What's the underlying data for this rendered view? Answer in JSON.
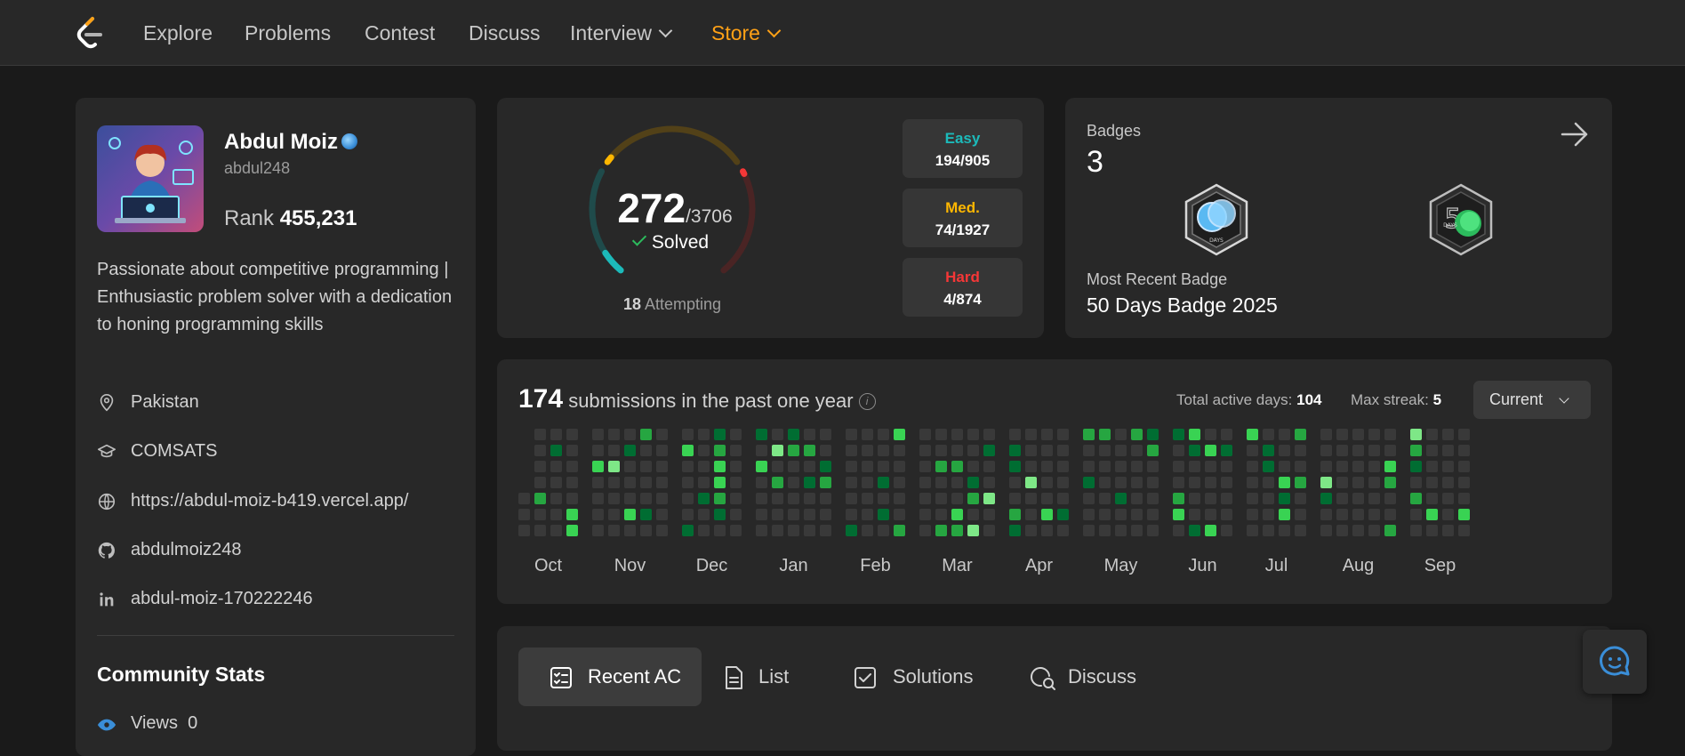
{
  "nav": {
    "items": [
      "Explore",
      "Problems",
      "Contest",
      "Discuss",
      "Interview",
      "Store"
    ],
    "logo_icon": "leetcode-logo"
  },
  "profile": {
    "name": "Abdul Moiz",
    "handle": "abdul248",
    "rank_label": "Rank",
    "rank_value": "455,231",
    "bio": "Passionate about competitive programming | Enthusiastic problem solver with a dedication to honing programming skills",
    "location": "Pakistan",
    "school": "COMSATS",
    "website": "https://abdul-moiz-b419.vercel.app/",
    "github": "abdulmoiz248",
    "linkedin": "abdul-moiz-170222246",
    "community_title": "Community Stats",
    "views_label": "Views",
    "views_value": "0"
  },
  "solved": {
    "count": "272",
    "total": "/3706",
    "label": "Solved",
    "attempting_count": "18",
    "attempting_label": "Attempting",
    "progress_fraction": 0.073,
    "easy": {
      "label": "Easy",
      "value": "194/905",
      "color": "#1cbaba"
    },
    "medium": {
      "label": "Med.",
      "value": "74/1927",
      "color": "#ffb700"
    },
    "hard": {
      "label": "Hard",
      "value": "4/874",
      "color": "#f63737"
    }
  },
  "badges": {
    "title": "Badges",
    "count": "3",
    "recent_label": "Most Recent Badge",
    "recent_name": "50 Days Badge 2025",
    "badge_text": "DAYS"
  },
  "submissions": {
    "count": "174",
    "label": "submissions in the past one year",
    "active_label": "Total active days:",
    "active_value": "104",
    "streak_label": "Max streak:",
    "streak_value": "5",
    "period": "Current",
    "months": [
      "Oct",
      "Nov",
      "Dec",
      "Jan",
      "Feb",
      "Mar",
      "Apr",
      "May",
      "Jun",
      "Jul",
      "Aug",
      "Sep"
    ],
    "colors": {
      "empty": "#393939",
      "l1": "#006d32",
      "l2": "#26a641",
      "l3": "#39d353",
      "l4": "#7ee787"
    }
  },
  "tabs": [
    "Recent AC",
    "List",
    "Solutions",
    "Discuss"
  ],
  "accent": "#ffa116"
}
